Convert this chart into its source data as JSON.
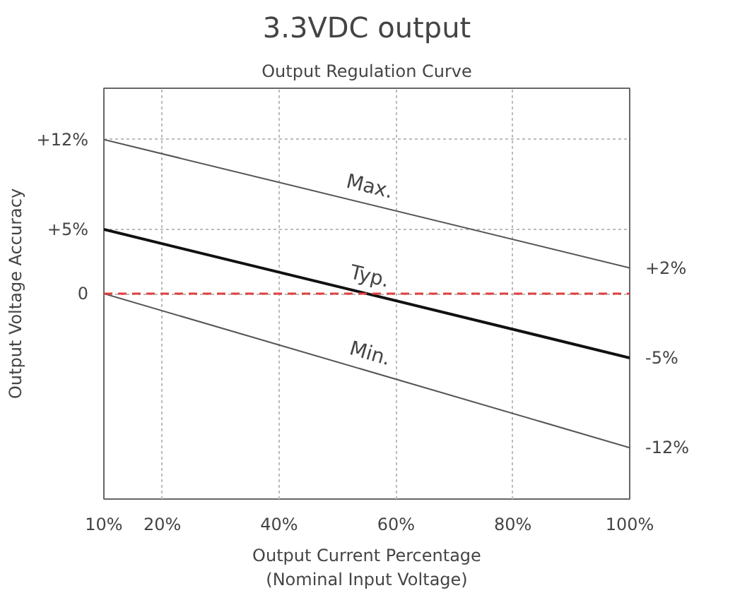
{
  "chart_data": {
    "type": "line",
    "title": "3.3VDC output",
    "subtitle": "Output Regulation Curve",
    "xlabel": "Output Current Percentage\n(Nominal Input Voltage)",
    "ylabel": "Output Voltage Accuracy",
    "x": [
      10,
      100
    ],
    "series": [
      {
        "name": "Max.",
        "color": "#555555",
        "values": [
          12,
          2
        ]
      },
      {
        "name": "Typ.",
        "color": "#111111",
        "values": [
          5,
          -5
        ]
      },
      {
        "name": "Min.",
        "color": "#555555",
        "values": [
          0,
          -12
        ]
      }
    ],
    "xlim": [
      10,
      100
    ],
    "xticks": [
      {
        "value": 10,
        "label": "10%"
      },
      {
        "value": 20,
        "label": "20%"
      },
      {
        "value": 40,
        "label": "40%"
      },
      {
        "value": 60,
        "label": "60%"
      },
      {
        "value": 80,
        "label": "80%"
      },
      {
        "value": 100,
        "label": "100%"
      }
    ],
    "ylim": [
      -16,
      16
    ],
    "yticks": [
      {
        "value": 12,
        "label": "+12%"
      },
      {
        "value": 5,
        "label": "+5%"
      },
      0
    ],
    "y2lim": [
      -16,
      16
    ],
    "y2ticks": [
      {
        "value": 2,
        "label": "+2%"
      },
      {
        "value": -5,
        "label": "-5%"
      },
      {
        "value": -12,
        "label": "-12%"
      }
    ],
    "ref_lines": [
      {
        "axis": "y",
        "value": 0,
        "color": "#e0403f",
        "line_style": "dashed"
      }
    ],
    "grid": true,
    "line_style": "solid",
    "marker": "none"
  }
}
